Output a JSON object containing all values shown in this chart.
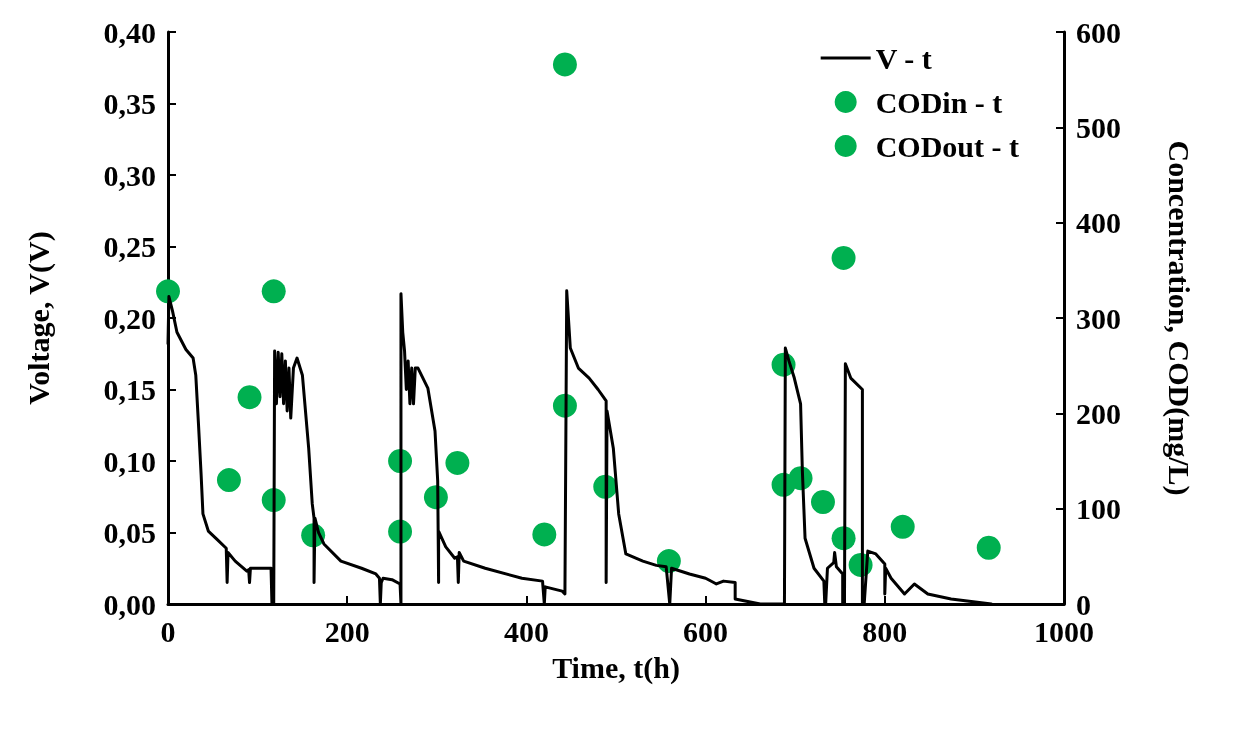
{
  "chart_data": {
    "type": "line",
    "xlabel": "Time, t(h)",
    "ylabel": "Voltage, V(V)",
    "y2label": "Concentration, COD(mg/L)",
    "xlim": [
      0,
      1000
    ],
    "xticks": [
      0,
      200,
      400,
      600,
      800,
      1000
    ],
    "ylim": [
      0,
      0.4
    ],
    "yticks": [
      {
        "value": 0,
        "label": "0,00"
      },
      {
        "value": 0.05,
        "label": "0,05"
      },
      {
        "value": 0.1,
        "label": "0,10"
      },
      {
        "value": 0.15,
        "label": "0,15"
      },
      {
        "value": 0.2,
        "label": "0,20"
      },
      {
        "value": 0.25,
        "label": "0,25"
      },
      {
        "value": 0.3,
        "label": "0,30"
      },
      {
        "value": 0.35,
        "label": "0,35"
      },
      {
        "value": 0.4,
        "label": "0,40"
      }
    ],
    "y2lim": [
      0,
      600
    ],
    "y2ticks": [
      0,
      100,
      200,
      300,
      400,
      500,
      600
    ],
    "legend": "top right",
    "grid": false,
    "series": [
      {
        "name": "V - t",
        "type": "line",
        "color": "#000000",
        "marker": "none",
        "line_style": "solid",
        "x": [
          0,
          1,
          5,
          10,
          20,
          28,
          31,
          34,
          37,
          39,
          45,
          55,
          65,
          66,
          67,
          75,
          88,
          90,
          91,
          92,
          115,
          116,
          118,
          119,
          121,
          123,
          125,
          127,
          129,
          131,
          133,
          135,
          137,
          140,
          144,
          150,
          157,
          161,
          163,
          163,
          164,
          168,
          174,
          193,
          216,
          232,
          236,
          237,
          238,
          240,
          250,
          259,
          260,
          260,
          262,
          264,
          266,
          268,
          270,
          272,
          274,
          276,
          279,
          290,
          298,
          301,
          302,
          302,
          310,
          320,
          323,
          324,
          325,
          330,
          354,
          395,
          418,
          420,
          421,
          440,
          443,
          445,
          449,
          458,
          470,
          480,
          489,
          489,
          490,
          497,
          503,
          511,
          530,
          545,
          556,
          560,
          562,
          582,
          600,
          609,
          612,
          620,
          633,
          633,
          661,
          686,
          688,
          689,
          693,
          699,
          706,
          708,
          711,
          721,
          732,
          733,
          734,
          736,
          743,
          744,
          746,
          753,
          753,
          755,
          756,
          762,
          775,
          775,
          777,
          781,
          790,
          800,
          800,
          801,
          807,
          822,
          833,
          848,
          874,
          919
        ],
        "values": [
          0.182,
          0.215,
          0.205,
          0.19,
          0.178,
          0.172,
          0.16,
          0.126,
          0.09,
          0.063,
          0.051,
          0.045,
          0.039,
          0.015,
          0.036,
          0.03,
          0.023,
          0.024,
          0.015,
          0.025,
          0.025,
          0,
          0,
          0.177,
          0.14,
          0.176,
          0.145,
          0.175,
          0.14,
          0.17,
          0.135,
          0.165,
          0.13,
          0.165,
          0.172,
          0.16,
          0.109,
          0.07,
          0.06,
          0.015,
          0.06,
          0.05,
          0.042,
          0.03,
          0.025,
          0.021,
          0.018,
          0,
          0.015,
          0.018,
          0.017,
          0.014,
          0,
          0.217,
          0.19,
          0.177,
          0.15,
          0.17,
          0.14,
          0.165,
          0.14,
          0.165,
          0.165,
          0.151,
          0.121,
          0.086,
          0.015,
          0.051,
          0.04,
          0.032,
          0.033,
          0.015,
          0.036,
          0.03,
          0.025,
          0.018,
          0.016,
          0,
          0.012,
          0.009,
          0.007,
          0.219,
          0.179,
          0.165,
          0.158,
          0.15,
          0.142,
          0.015,
          0.135,
          0.109,
          0.063,
          0.035,
          0.03,
          0.027,
          0.026,
          0,
          0.025,
          0.021,
          0.018,
          0.015,
          0.014,
          0.016,
          0.015,
          0.0035,
          0,
          0,
          0,
          0.179,
          0.17,
          0.158,
          0.14,
          0.093,
          0.046,
          0.025,
          0.016,
          0,
          0,
          0.025,
          0.029,
          0.036,
          0.026,
          0.021,
          0,
          0,
          0.168,
          0.158,
          0.15,
          0,
          0,
          0.037,
          0.035,
          0.028,
          0.007,
          0.025,
          0.018,
          0.007,
          0.014,
          0.007,
          0.0035,
          0
        ]
      },
      {
        "name": "CODin - t",
        "type": "scatter",
        "axis": "y2",
        "color": "#00b050",
        "marker": "circle",
        "x": [
          0,
          118,
          91,
          259,
          323,
          443,
          443,
          687,
          706,
          754,
          820
        ],
        "values": [
          328,
          328,
          217,
          150,
          148,
          208,
          566,
          251,
          132,
          363,
          81
        ]
      },
      {
        "name": "CODout - t",
        "type": "scatter",
        "axis": "y2",
        "color": "#00b050",
        "marker": "circle",
        "x": [
          68,
          118,
          162,
          259,
          299,
          420,
          488,
          559,
          687,
          731,
          754,
          773,
          916
        ],
        "values": [
          130,
          109,
          72,
          76,
          112,
          73,
          123,
          45,
          125,
          107,
          69,
          41,
          59
        ]
      }
    ]
  }
}
